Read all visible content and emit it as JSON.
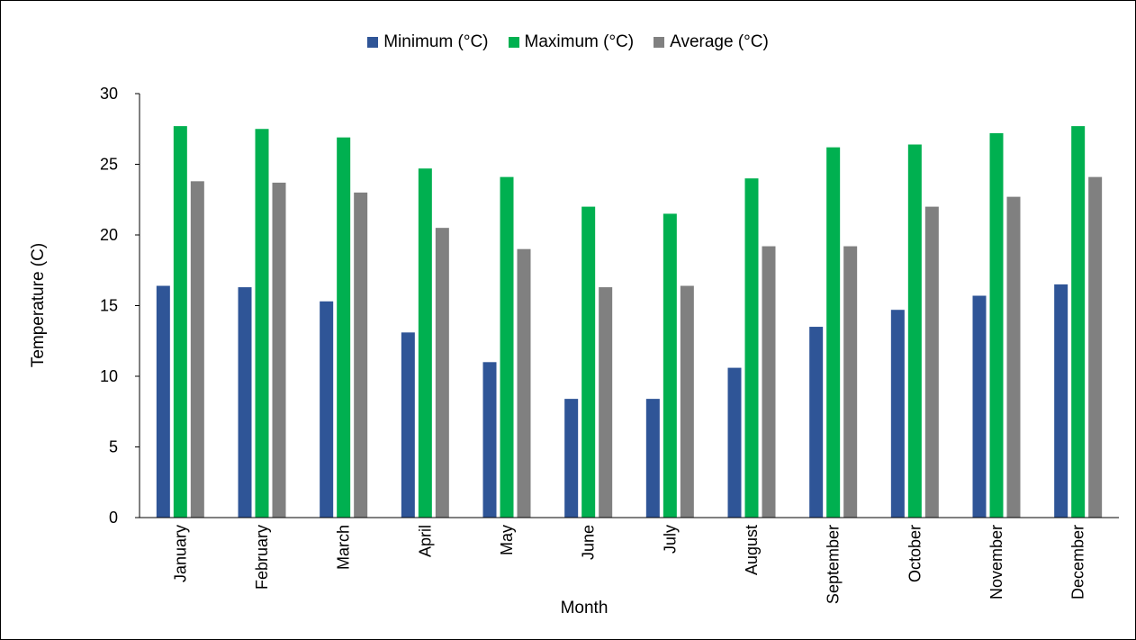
{
  "chart_data": {
    "type": "bar",
    "title": "",
    "xlabel": "Month",
    "ylabel": "Temperature (C)",
    "ylim": [
      0,
      30
    ],
    "yticks": [
      0,
      5,
      10,
      15,
      20,
      25,
      30
    ],
    "grid": false,
    "legend_position": "top",
    "categories": [
      "January",
      "February",
      "March",
      "April",
      "May",
      "June",
      "July",
      "August",
      "September",
      "October",
      "November",
      "December"
    ],
    "series": [
      {
        "name": "Minimum  (°C)",
        "color": "#2f5597",
        "values": [
          16.4,
          16.3,
          15.3,
          13.1,
          11.0,
          8.4,
          8.4,
          10.6,
          13.5,
          14.7,
          15.7,
          16.5
        ]
      },
      {
        "name": "Maximum (°C)",
        "color": "#00b050",
        "values": [
          27.7,
          27.5,
          26.9,
          24.7,
          24.1,
          22.0,
          21.5,
          24.0,
          26.2,
          26.4,
          27.2,
          27.7
        ]
      },
      {
        "name": "Average  (°C)",
        "color": "#808080",
        "values": [
          23.8,
          23.7,
          23.0,
          20.5,
          19.0,
          16.3,
          16.4,
          19.2,
          19.2,
          22.0,
          22.7,
          24.1
        ]
      }
    ]
  }
}
